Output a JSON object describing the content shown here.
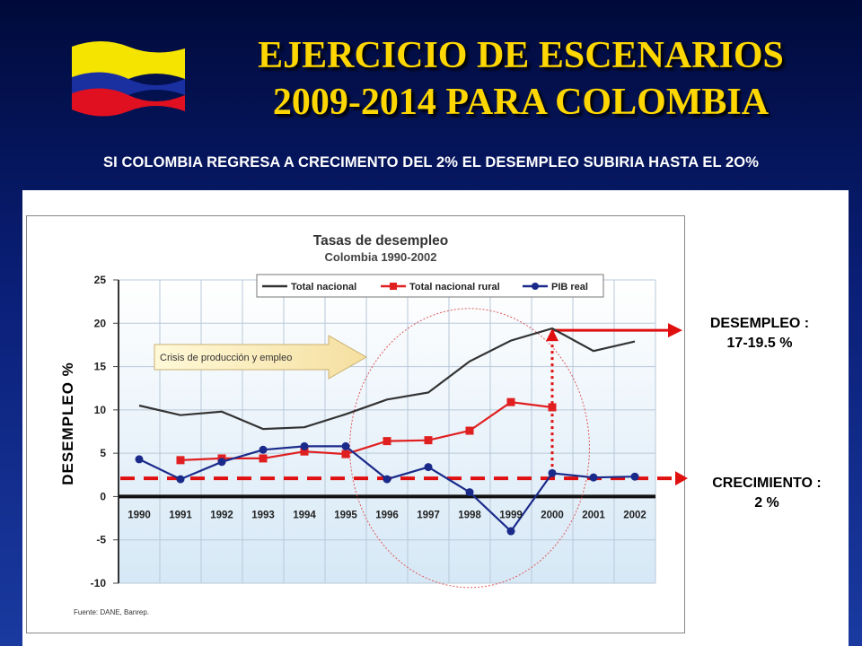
{
  "slide": {
    "title_line1": "EJERCICIO DE ESCENARIOS",
    "title_line2": "2009-2014 PARA  COLOMBIA",
    "subtitle": "SI COLOMBIA REGRESA A CRECIMENTO DEL 2% EL DESEMPLEO SUBIRIA HASTA EL 2O%",
    "ylabel_outer": "DESEMPLEO %",
    "desempleo_label": "DESEMPLEO :",
    "desempleo_value": "17-19.5 %",
    "crecimiento_label": "CRECIMIENTO :",
    "crecimiento_value": "2 %",
    "source": "Fuente: DANE, Banrep.",
    "flag_colors": [
      "#f5e400",
      "#1a2fa0",
      "#e01020"
    ]
  },
  "chart_data": {
    "type": "line",
    "title": "Tasas de desempleo",
    "subtitle": "Colombia 1990-2002",
    "annotation": "Crisis de producción y empleo",
    "categories": [
      "1990",
      "1991",
      "1992",
      "1993",
      "1994",
      "1995",
      "1996",
      "1997",
      "1998",
      "1999",
      "2000",
      "2001",
      "2002"
    ],
    "ylim": [
      -10,
      25
    ],
    "yticks": [
      -10,
      -5,
      0,
      5,
      10,
      15,
      20,
      25
    ],
    "grid": true,
    "legend_position": "top",
    "series": [
      {
        "name": "Total nacional",
        "color": "#333333",
        "marker": "none",
        "values": [
          10.5,
          9.4,
          9.8,
          7.8,
          8.0,
          9.5,
          11.2,
          12.0,
          15.6,
          18.0,
          19.4,
          16.8,
          17.9
        ]
      },
      {
        "name": "Total nacional rural",
        "color": "#e02020",
        "marker": "square",
        "values": [
          null,
          4.2,
          4.4,
          4.4,
          5.2,
          4.9,
          6.4,
          6.5,
          7.6,
          10.9,
          10.3,
          null,
          null
        ]
      },
      {
        "name": "PIB real",
        "color": "#1a2a8a",
        "marker": "circle",
        "values": [
          4.3,
          2.0,
          4.0,
          5.4,
          5.8,
          5.8,
          2.0,
          3.4,
          0.5,
          -4.0,
          2.7,
          2.2,
          2.3
        ]
      }
    ]
  }
}
